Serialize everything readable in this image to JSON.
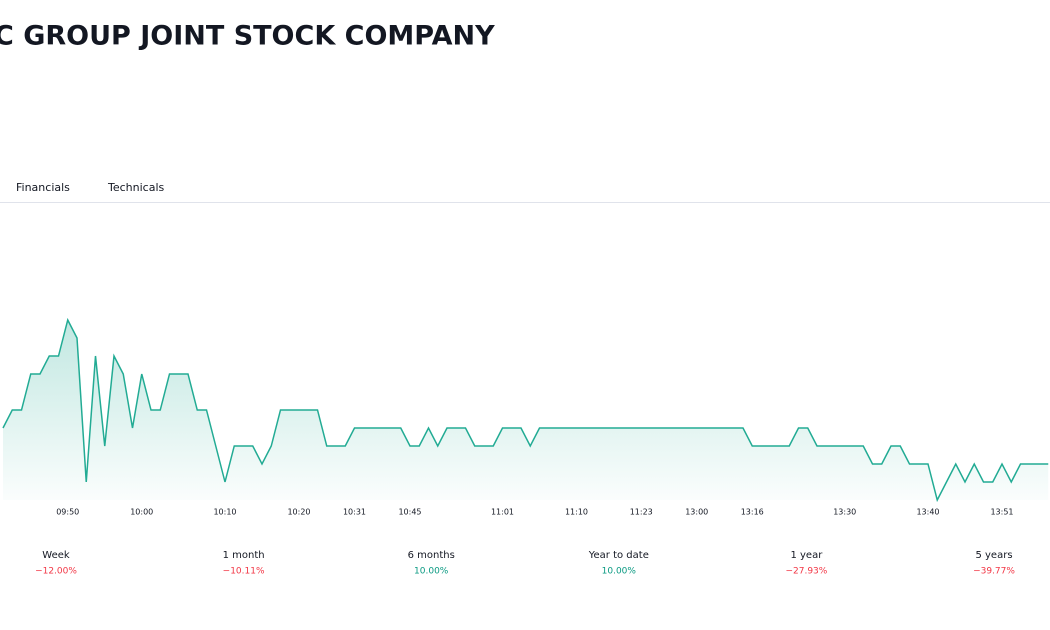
{
  "header": {
    "title": "C GROUP JOINT STOCK COMPANY"
  },
  "tabs": [
    "Financials",
    "Technicals"
  ],
  "chart_data": {
    "type": "area",
    "color": "#22ab94",
    "ylim": [
      0,
      10
    ],
    "categories": [
      null,
      null,
      null,
      null,
      null,
      null,
      null,
      "09:50",
      null,
      null,
      null,
      null,
      null,
      null,
      null,
      "10:00",
      null,
      null,
      null,
      null,
      null,
      null,
      null,
      null,
      "10:10",
      null,
      null,
      null,
      null,
      null,
      null,
      null,
      "10:20",
      null,
      null,
      null,
      null,
      null,
      "10:31",
      null,
      null,
      null,
      null,
      null,
      "10:45",
      null,
      null,
      null,
      null,
      null,
      null,
      null,
      null,
      null,
      "11:01",
      null,
      null,
      null,
      null,
      null,
      null,
      null,
      "11:10",
      null,
      null,
      null,
      null,
      null,
      null,
      "11:23",
      null,
      null,
      null,
      null,
      null,
      "13:00",
      null,
      null,
      null,
      null,
      null,
      "13:16",
      null,
      null,
      null,
      null,
      null,
      null,
      null,
      null,
      null,
      "13:30",
      null,
      null,
      null,
      null,
      null,
      null,
      null,
      null,
      "13:40",
      null,
      null,
      null,
      null,
      null,
      null,
      null,
      "13:51",
      null,
      null,
      null,
      null,
      null
    ],
    "values": [
      4,
      5,
      5,
      7,
      7,
      8,
      8,
      10,
      9,
      1,
      8,
      3,
      8,
      7,
      4,
      7,
      5,
      5,
      7,
      7,
      7,
      5,
      5,
      3,
      1,
      3,
      3,
      3,
      2,
      3,
      5,
      5,
      5,
      5,
      5,
      3,
      3,
      3,
      4,
      4,
      4,
      4,
      4,
      4,
      3,
      3,
      4,
      3,
      4,
      4,
      4,
      3,
      3,
      3,
      4,
      4,
      4,
      3,
      4,
      4,
      4,
      4,
      4,
      4,
      4,
      4,
      4,
      4,
      4,
      4,
      4,
      4,
      4,
      4,
      4,
      4,
      4,
      4,
      4,
      4,
      4,
      3,
      3,
      3,
      3,
      3,
      4,
      4,
      3,
      3,
      3,
      3,
      3,
      3,
      2,
      2,
      3,
      3,
      2,
      2,
      2,
      0,
      1,
      2,
      1,
      2,
      1,
      1,
      2,
      1,
      2,
      2,
      2,
      2
    ]
  },
  "performance": [
    {
      "period": "Week",
      "value": -12.0,
      "value_label": "−12.00%"
    },
    {
      "period": "1 month",
      "value": -10.11,
      "value_label": "−10.11%"
    },
    {
      "period": "6 months",
      "value": 10.0,
      "value_label": "10.00%"
    },
    {
      "period": "Year to date",
      "value": 10.0,
      "value_label": "10.00%"
    },
    {
      "period": "1 year",
      "value": -27.93,
      "value_label": "−27.93%"
    },
    {
      "period": "5 years",
      "value": -39.77,
      "value_label": "−39.77%"
    }
  ]
}
